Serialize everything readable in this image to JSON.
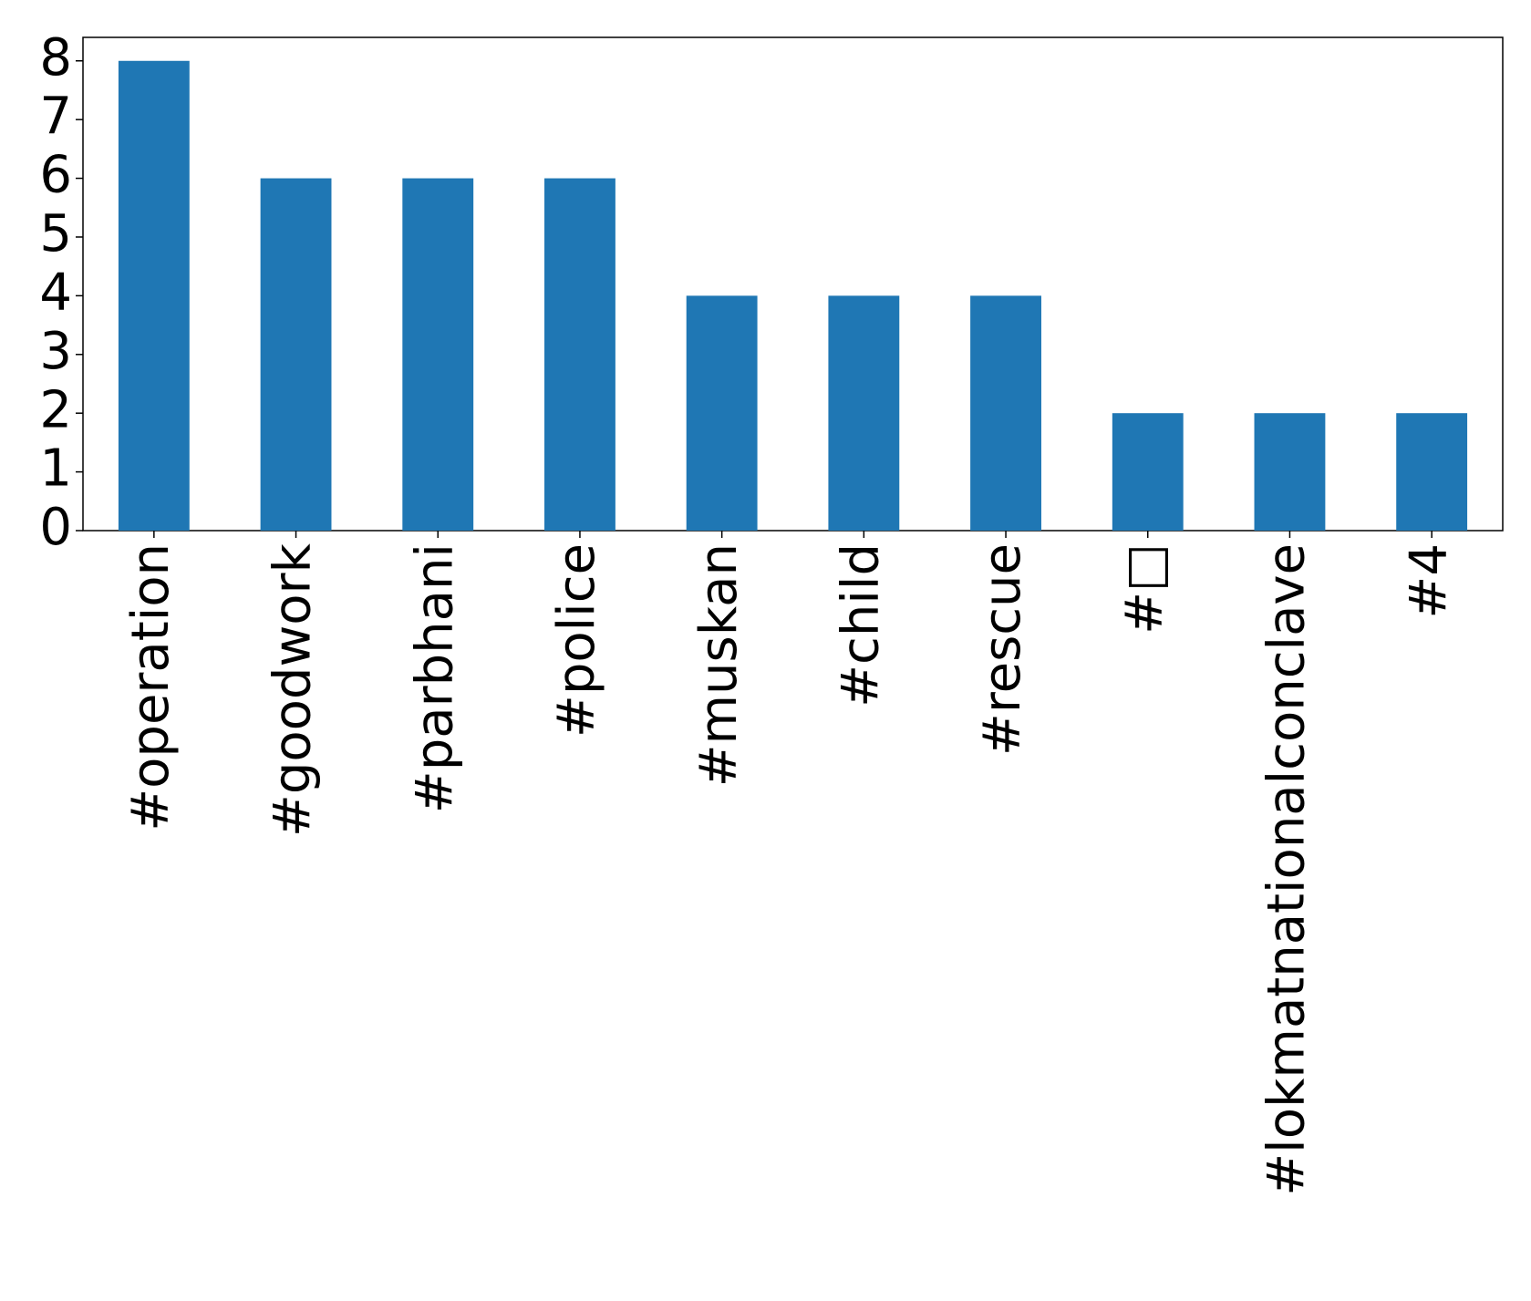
{
  "chart_data": {
    "type": "bar",
    "categories": [
      "#operation",
      "#goodwork",
      "#parbhani",
      "#police",
      "#muskan",
      "#child",
      "#rescue",
      "#□",
      "#lokmatnationalconclave",
      "#4"
    ],
    "values": [
      8,
      6,
      6,
      6,
      4,
      4,
      4,
      2,
      2,
      2
    ],
    "color": "#1f77b4",
    "ylim": [
      0,
      8.4
    ],
    "yticks": [
      0,
      1,
      2,
      3,
      4,
      5,
      6,
      7,
      8
    ],
    "grid": false
  }
}
